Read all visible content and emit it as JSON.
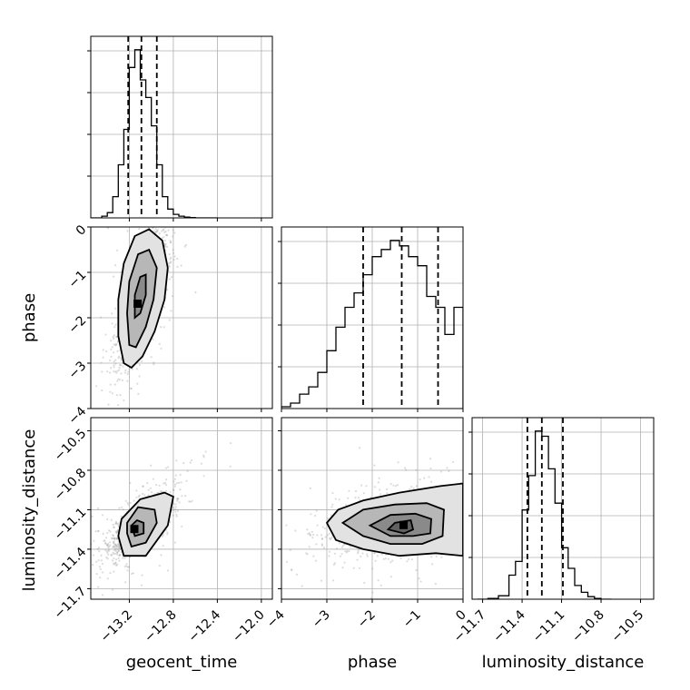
{
  "chart_data": {
    "type": "corner",
    "parameters": [
      "geocent_time",
      "phase",
      "luminosity_distance"
    ],
    "axis_ranges": {
      "geocent_time": [
        -13.55,
        -11.9
      ],
      "phase": [
        -4,
        0
      ],
      "luminosity_distance": [
        -11.78,
        -10.4
      ]
    },
    "ticks": {
      "geocent_time": [
        -13.2,
        -12.8,
        -12.4,
        -12.0
      ],
      "phase": [
        -4,
        -3,
        -2,
        -1,
        0
      ],
      "luminosity_distance": [
        -11.7,
        -11.4,
        -11.1,
        -10.8,
        -10.5
      ]
    },
    "tick_labels": {
      "geocent_time": [
        "−13.2",
        "−12.8",
        "−12.4",
        "−12.0"
      ],
      "phase": [
        "−4",
        "−3",
        "−2",
        "−1",
        "0"
      ],
      "luminosity_distance": [
        "−11.7",
        "−11.4",
        "−11.1",
        "−10.8",
        "−10.5"
      ]
    },
    "grid": true,
    "quantiles": {
      "geocent_time": [
        -13.21,
        -13.09,
        -12.95
      ],
      "phase": [
        -2.2,
        -1.35,
        -0.55
      ],
      "luminosity_distance": [
        -11.36,
        -11.25,
        -11.09
      ]
    },
    "histograms": {
      "geocent_time": {
        "edges": [
          -13.55,
          -13.45,
          -13.4,
          -13.35,
          -13.3,
          -13.25,
          -13.2,
          -13.15,
          -13.1,
          -13.05,
          -13.0,
          -12.95,
          -12.9,
          -12.85,
          -12.8,
          -12.75,
          -12.7,
          -12.65,
          -12.6,
          -12.55,
          -12.5,
          -12.45,
          -12.4
        ],
        "counts": [
          0,
          1,
          3,
          12,
          30,
          50,
          85,
          95,
          78,
          68,
          52,
          30,
          12,
          5,
          2,
          1,
          0.4,
          0.2,
          0,
          0,
          0,
          0
        ]
      },
      "phase": {
        "edges": [
          -4.0,
          -3.8,
          -3.6,
          -3.4,
          -3.2,
          -3.0,
          -2.8,
          -2.6,
          -2.4,
          -2.2,
          -2.0,
          -1.8,
          -1.6,
          -1.4,
          -1.2,
          -1.0,
          -0.8,
          -0.6,
          -0.4,
          -0.2,
          0.0
        ],
        "counts": [
          1,
          3,
          8,
          12,
          20,
          32,
          45,
          56,
          64,
          74,
          84,
          88,
          93,
          90,
          84,
          79,
          62,
          56,
          41,
          56
        ]
      },
      "luminosity_distance": {
        "edges": [
          -11.74,
          -11.66,
          -11.58,
          -11.5,
          -11.45,
          -11.4,
          -11.35,
          -11.3,
          -11.25,
          -11.2,
          -11.15,
          -11.1,
          -11.05,
          -11.0,
          -10.95,
          -10.9,
          -10.85,
          -10.8,
          -10.72
        ],
        "counts": [
          0,
          0.4,
          2,
          14,
          22,
          52,
          72,
          98,
          95,
          76,
          56,
          30,
          18,
          8,
          4,
          1.5,
          0.5,
          0
        ]
      }
    },
    "contours_2d": [
      {
        "x": "geocent_time",
        "y": "phase",
        "levels": [
          [
            [
              -13.25,
              -3.0
            ],
            [
              -13.3,
              -2.4
            ],
            [
              -13.3,
              -1.6
            ],
            [
              -13.25,
              -0.8
            ],
            [
              -13.15,
              -0.2
            ],
            [
              -13.02,
              -0.05
            ],
            [
              -12.9,
              -0.3
            ],
            [
              -12.85,
              -0.9
            ],
            [
              -12.88,
              -1.6
            ],
            [
              -12.97,
              -2.3
            ],
            [
              -13.08,
              -2.85
            ],
            [
              -13.18,
              -3.1
            ],
            [
              -13.25,
              -3.0
            ]
          ],
          [
            [
              -13.2,
              -2.6
            ],
            [
              -13.22,
              -1.9
            ],
            [
              -13.2,
              -1.2
            ],
            [
              -13.12,
              -0.6
            ],
            [
              -13.02,
              -0.5
            ],
            [
              -12.95,
              -0.9
            ],
            [
              -12.98,
              -1.6
            ],
            [
              -13.05,
              -2.2
            ],
            [
              -13.14,
              -2.65
            ],
            [
              -13.2,
              -2.6
            ]
          ],
          [
            [
              -13.15,
              -2.0
            ],
            [
              -13.15,
              -1.5
            ],
            [
              -13.1,
              -1.1
            ],
            [
              -13.05,
              -1.05
            ],
            [
              -13.05,
              -1.5
            ],
            [
              -13.1,
              -1.9
            ],
            [
              -13.15,
              -2.0
            ]
          ]
        ]
      },
      {
        "x": "geocent_time",
        "y": "luminosity_distance",
        "levels": [
          [
            [
              -13.3,
              -11.3
            ],
            [
              -13.25,
              -11.45
            ],
            [
              -13.05,
              -11.45
            ],
            [
              -12.85,
              -11.22
            ],
            [
              -12.8,
              -11.0
            ],
            [
              -12.88,
              -10.97
            ],
            [
              -13.1,
              -11.02
            ],
            [
              -13.27,
              -11.17
            ],
            [
              -13.3,
              -11.3
            ]
          ],
          [
            [
              -13.22,
              -11.28
            ],
            [
              -13.18,
              -11.38
            ],
            [
              -13.05,
              -11.35
            ],
            [
              -12.95,
              -11.2
            ],
            [
              -12.97,
              -11.1
            ],
            [
              -13.12,
              -11.08
            ],
            [
              -13.22,
              -11.2
            ],
            [
              -13.22,
              -11.28
            ]
          ],
          [
            [
              -13.18,
              -11.22
            ],
            [
              -13.15,
              -11.3
            ],
            [
              -13.07,
              -11.28
            ],
            [
              -13.07,
              -11.2
            ],
            [
              -13.13,
              -11.18
            ],
            [
              -13.18,
              -11.22
            ]
          ]
        ]
      },
      {
        "x": "phase",
        "y": "luminosity_distance",
        "levels": [
          [
            [
              -3.0,
              -11.2
            ],
            [
              -2.75,
              -11.1
            ],
            [
              -2.2,
              -11.03
            ],
            [
              -1.4,
              -10.97
            ],
            [
              -0.5,
              -10.92
            ],
            [
              0,
              -10.9
            ],
            [
              0,
              -11.45
            ],
            [
              -0.6,
              -11.43
            ],
            [
              -1.4,
              -11.45
            ],
            [
              -2.2,
              -11.4
            ],
            [
              -2.8,
              -11.33
            ],
            [
              -3.0,
              -11.2
            ]
          ],
          [
            [
              -2.65,
              -11.2
            ],
            [
              -2.2,
              -11.1
            ],
            [
              -1.5,
              -11.06
            ],
            [
              -0.8,
              -11.05
            ],
            [
              -0.42,
              -11.1
            ],
            [
              -0.45,
              -11.3
            ],
            [
              -0.9,
              -11.36
            ],
            [
              -1.6,
              -11.36
            ],
            [
              -2.2,
              -11.3
            ],
            [
              -2.65,
              -11.2
            ]
          ],
          [
            [
              -2.05,
              -11.22
            ],
            [
              -1.6,
              -11.14
            ],
            [
              -1.05,
              -11.13
            ],
            [
              -0.7,
              -11.17
            ],
            [
              -0.72,
              -11.28
            ],
            [
              -1.1,
              -11.3
            ],
            [
              -1.6,
              -11.3
            ],
            [
              -2.05,
              -11.22
            ]
          ],
          [
            [
              -1.65,
              -11.25
            ],
            [
              -1.5,
              -11.2
            ],
            [
              -1.15,
              -11.18
            ],
            [
              -1.1,
              -11.25
            ],
            [
              -1.3,
              -11.28
            ],
            [
              -1.65,
              -11.25
            ]
          ]
        ]
      }
    ],
    "density_blobs": [
      {
        "x": "geocent_time",
        "y": "phase",
        "center": [
          -13.08,
          -1.5
        ],
        "spread": [
          0.12,
          0.8
        ],
        "corr": 0.75,
        "peak": [
          -13.12,
          -1.7
        ]
      },
      {
        "x": "geocent_time",
        "y": "luminosity_distance",
        "center": [
          -13.1,
          -11.22
        ],
        "spread": [
          0.13,
          0.12
        ],
        "corr": 0.7,
        "peak": [
          -13.15,
          -11.25
        ]
      },
      {
        "x": "phase",
        "y": "luminosity_distance",
        "center": [
          -1.4,
          -11.2
        ],
        "spread": [
          0.75,
          0.12
        ],
        "corr": 0.25,
        "peak": [
          -1.3,
          -11.22
        ]
      }
    ]
  }
}
